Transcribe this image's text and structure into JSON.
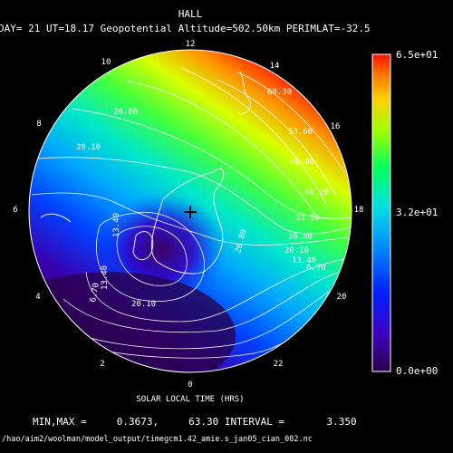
{
  "header": {
    "title": "HALL",
    "subtitle": "DAY= 21 UT=18.17 Geopotential Altitude=502.50km PERIMLAT=-32.5"
  },
  "clock": {
    "hour_12": "12",
    "hour_14": "14",
    "hour_16": "16",
    "hour_18": "18",
    "hour_20": "20",
    "hour_22": "22",
    "hour_0": "0",
    "hour_2": "2",
    "hour_4": "4",
    "hour_6": "6",
    "hour_8": "8",
    "hour_10": "10"
  },
  "contour_labels": {
    "c1": "60.30",
    "c2": "53.60",
    "c3": "46.90",
    "c4": "40.20",
    "c5": "33.50",
    "c6": "26.80",
    "c7": "20.10",
    "c8": "13.40",
    "c9": "6.70",
    "c10": "26.80",
    "c11": "20.10",
    "c12": "13.40",
    "c13": "13.40",
    "c14": "20.10",
    "c15": "6.70",
    "c16": "26.80"
  },
  "colorbar": {
    "max_label": "6.5e+01",
    "mid_label": "3.2e+01",
    "min_label": "0.0e+00",
    "min": 0,
    "max": 65
  },
  "footer": {
    "axis_label": "SOLAR LOCAL TIME (HRS)",
    "stats": "MIN,MAX =     0.3673,     63.30 INTERVAL =       3.350",
    "path": "/hao/aim2/woolman/model_output/timegcm1.42_amie.s_jan05_cian_082.nc"
  },
  "map": {
    "field_min": 0.3673,
    "field_max": 63.3,
    "interval": 3.35
  }
}
